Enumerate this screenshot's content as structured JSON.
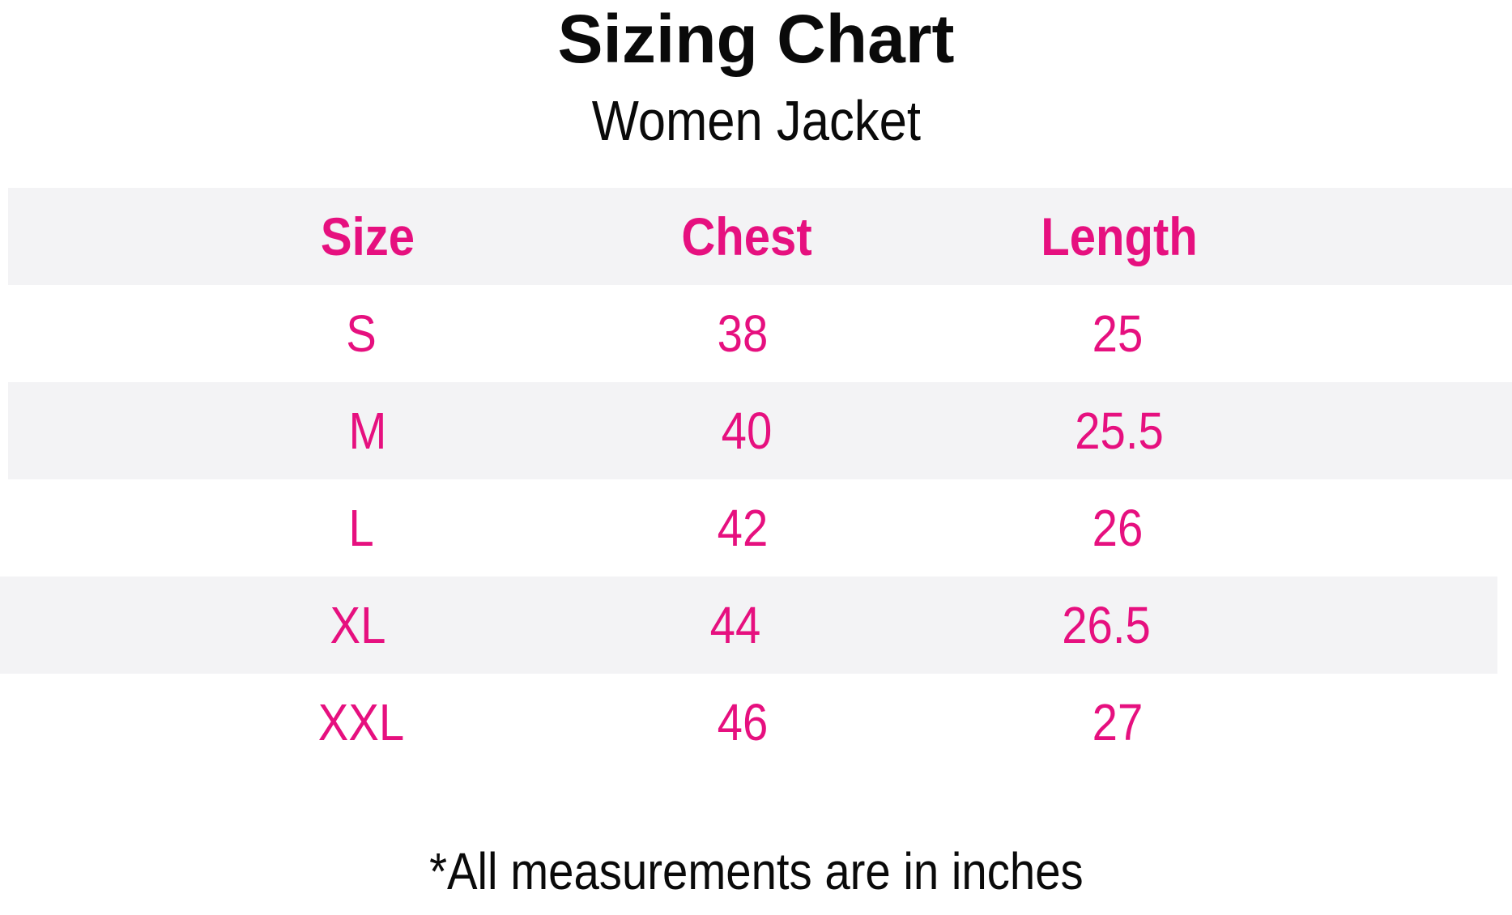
{
  "title": "Sizing Chart",
  "subtitle": "Women Jacket",
  "footnote": "*All measurements are in inches",
  "colors": {
    "accent_pink": "#E6107F",
    "row_stripe": "#F3F3F5",
    "text": "#0A0A0A"
  },
  "chart_data": {
    "type": "table",
    "title": "Sizing Chart",
    "subtitle": "Women Jacket",
    "columns": [
      "Size",
      "Chest",
      "Length"
    ],
    "rows": [
      [
        "S",
        "38",
        "25"
      ],
      [
        "M",
        "40",
        "25.5"
      ],
      [
        "L",
        "42",
        "26"
      ],
      [
        "XL",
        "44",
        "26.5"
      ],
      [
        "XXL",
        "46",
        "27"
      ]
    ],
    "units": "inches",
    "units_note": "*All measurements are in inches",
    "layout": {
      "striped_rows": [
        "header",
        "M",
        "XL"
      ],
      "column_center_percent": [
        23.9,
        49.1,
        73.9
      ],
      "grid": "off",
      "borders": "none"
    }
  }
}
